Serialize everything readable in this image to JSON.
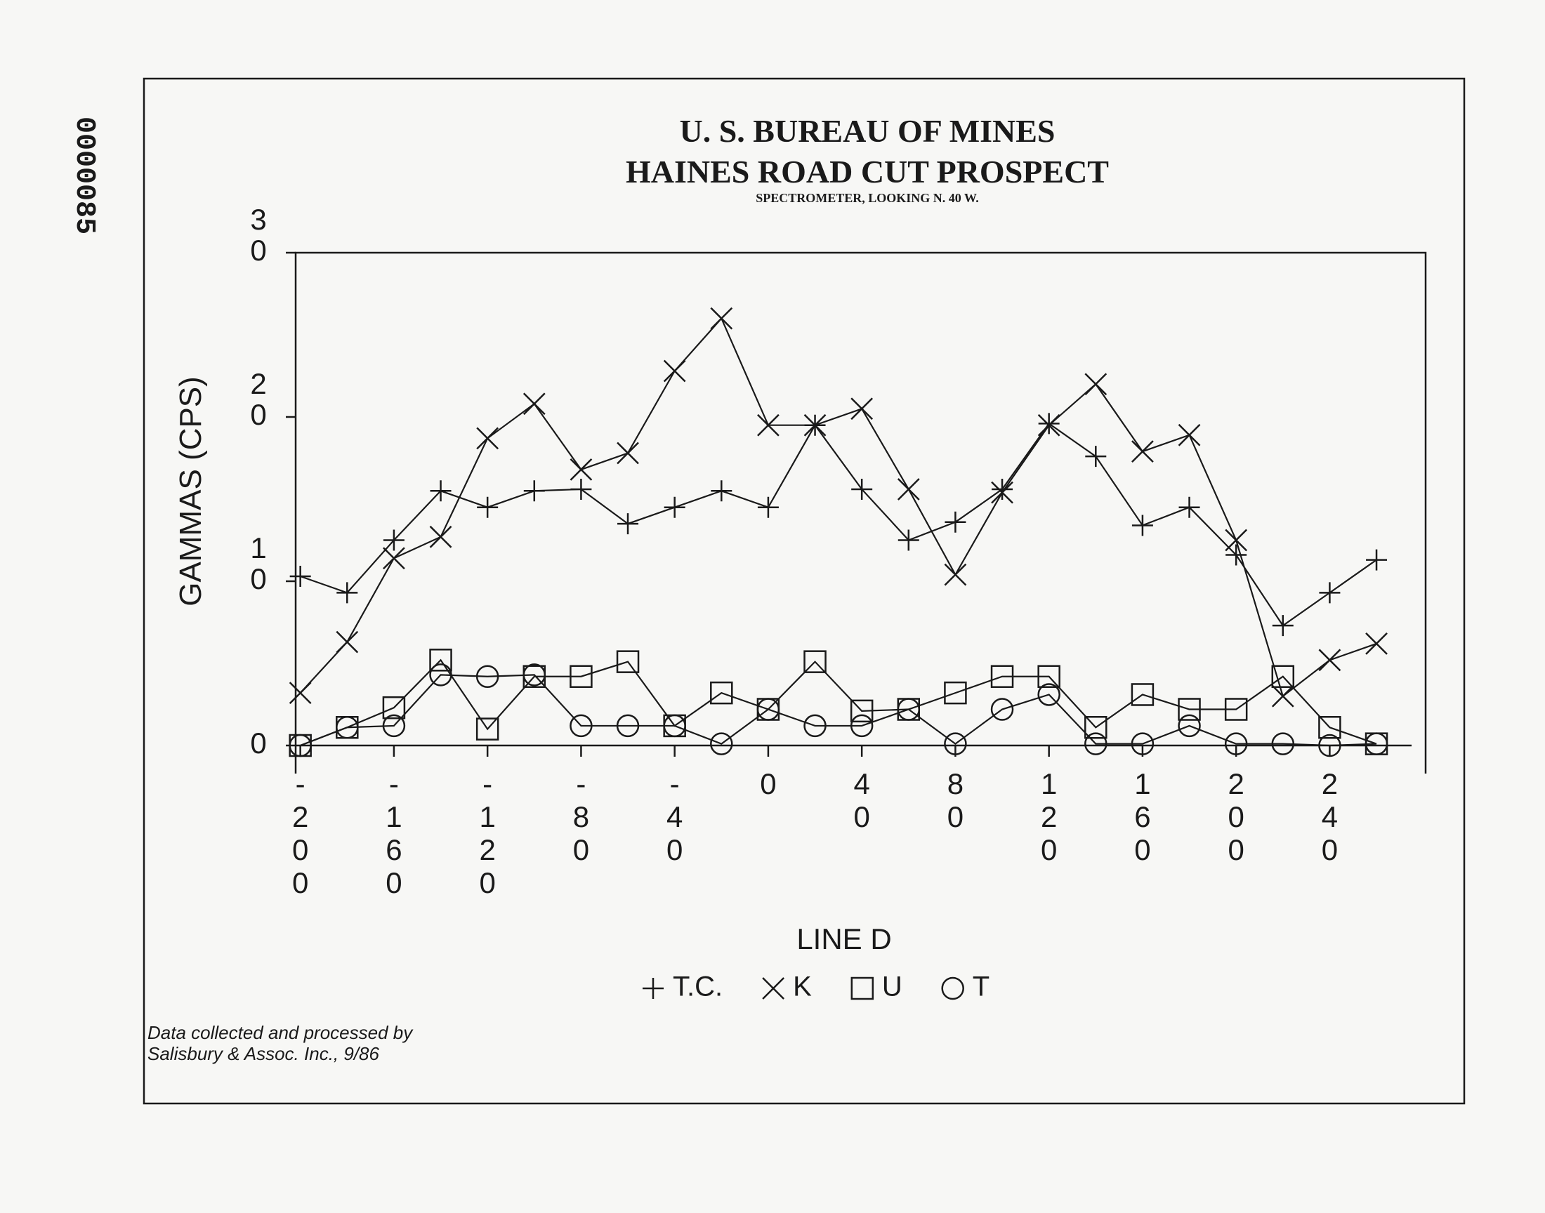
{
  "page_stamp": "0000085",
  "chart_data": {
    "type": "line",
    "title": "U. S. BUREAU OF MINES",
    "subtitle": "HAINES ROAD CUT PROSPECT",
    "annotation": "SPECTROMETER, LOOKING N. 40 W.",
    "y_label": "GAMMAS (CPS)",
    "x_label": "LINE D",
    "note": [
      "Data collected and processed by",
      "Salisbury & Assoc. Inc., 9/86"
    ],
    "x": [
      -200,
      -180,
      -160,
      -140,
      -120,
      -100,
      -80,
      -60,
      -40,
      -20,
      0,
      20,
      40,
      60,
      80,
      100,
      120,
      140,
      160,
      180,
      200,
      220,
      240,
      260
    ],
    "series": [
      {
        "name": "T.C.",
        "marker": "plus",
        "color": "#1a1a1a",
        "values": [
          10.3,
          9.3,
          12.5,
          15.5,
          14.5,
          15.5,
          15.6,
          13.5,
          14.5,
          15.5,
          14.5,
          19.5,
          15.6,
          12.5,
          13.6,
          15.6,
          19.6,
          17.6,
          13.4,
          14.5,
          11.6,
          7.3,
          9.3,
          11.3
        ]
      },
      {
        "name": "K",
        "marker": "x",
        "color": "#1a1a1a",
        "values": [
          3.2,
          6.3,
          11.4,
          12.7,
          18.7,
          20.8,
          16.8,
          17.8,
          22.8,
          26.0,
          19.5,
          19.5,
          20.5,
          15.6,
          10.4,
          15.4,
          19.5,
          22.0,
          17.9,
          18.9,
          12.5,
          3.0,
          5.2,
          6.2
        ]
      },
      {
        "name": "U",
        "marker": "square",
        "color": "#1a1a1a",
        "values": [
          0,
          1.1,
          2.3,
          5.2,
          1.0,
          4.2,
          4.2,
          5.1,
          1.2,
          3.2,
          2.2,
          5.1,
          2.1,
          2.2,
          3.2,
          4.2,
          4.2,
          1.1,
          3.1,
          2.2,
          2.2,
          4.2,
          1.1,
          0.1
        ]
      },
      {
        "name": "T",
        "marker": "circle",
        "color": "#1a1a1a",
        "values": [
          0,
          1.1,
          1.2,
          4.3,
          4.2,
          4.3,
          1.2,
          1.2,
          1.2,
          0.1,
          2.2,
          1.2,
          1.2,
          2.2,
          0.1,
          2.2,
          3.1,
          0.1,
          0.1,
          1.2,
          0.1,
          0.1,
          0,
          0.1
        ]
      }
    ],
    "xlim": [
      -202,
      281
    ],
    "ylim": [
      0,
      30
    ],
    "xticks": [
      -200,
      -160,
      -120,
      -80,
      -40,
      0,
      40,
      80,
      120,
      160,
      200,
      240
    ],
    "yticks": [
      0,
      10,
      20,
      30
    ],
    "grid": false,
    "legend": "bottom"
  }
}
